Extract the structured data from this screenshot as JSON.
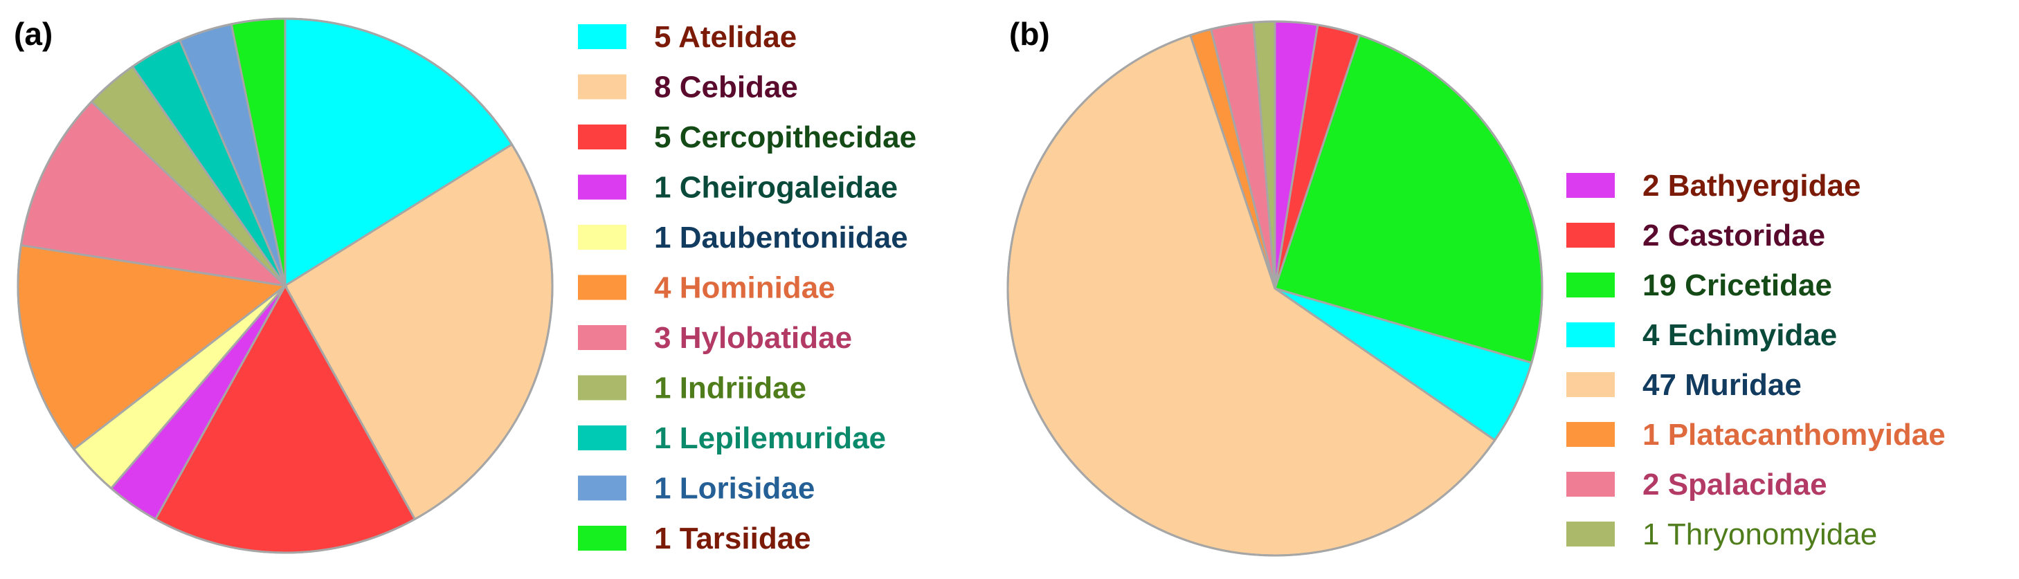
{
  "chart_data": [
    {
      "type": "pie",
      "panel_label": "(a)",
      "title": "",
      "start": "12 o'clock",
      "direction": "clockwise",
      "legend_position": "right",
      "slices": [
        {
          "label": "Atelidae",
          "value": 5,
          "color": "#00ffff",
          "text_color": "#7b1a06"
        },
        {
          "label": "Cebidae",
          "value": 8,
          "color": "#fdd09b",
          "text_color": "#5a0a2c"
        },
        {
          "label": "Cercopithecidae",
          "value": 5,
          "color": "#fd3f3f",
          "text_color": "#144a15"
        },
        {
          "label": "Cheirogaleidae",
          "value": 1,
          "color": "#dc3cf0",
          "text_color": "#0a4a3b"
        },
        {
          "label": "Daubentoniidae",
          "value": 1,
          "color": "#feff99",
          "text_color": "#123b60"
        },
        {
          "label": "Hominidae",
          "value": 4,
          "color": "#fd953c",
          "text_color": "#df6a3e"
        },
        {
          "label": "Hylobatidae",
          "value": 3,
          "color": "#ef7d94",
          "text_color": "#b23a64"
        },
        {
          "label": "Indriidae",
          "value": 1,
          "color": "#aab96a",
          "text_color": "#4f7d1c"
        },
        {
          "label": "Lepilemuridae",
          "value": 1,
          "color": "#00c9b4",
          "text_color": "#0a8a6b"
        },
        {
          "label": "Lorisidae",
          "value": 1,
          "color": "#6e9fd6",
          "text_color": "#245f95"
        },
        {
          "label": "Tarsiidae",
          "value": 1,
          "color": "#16f01e",
          "text_color": "#7b1a06"
        }
      ]
    },
    {
      "type": "pie",
      "panel_label": "(b)",
      "title": "",
      "start": "12 o'clock",
      "direction": "clockwise",
      "legend_position": "right",
      "slices": [
        {
          "label": "Bathyergidae",
          "value": 2,
          "color": "#dc3cf0",
          "text_color": "#7b1a06"
        },
        {
          "label": "Castoridae",
          "value": 2,
          "color": "#fd3f3f",
          "text_color": "#5a0a2c"
        },
        {
          "label": "Cricetidae",
          "value": 19,
          "color": "#16f01e",
          "text_color": "#144a15"
        },
        {
          "label": "Echimyidae",
          "value": 4,
          "color": "#00ffff",
          "text_color": "#0a4a3b"
        },
        {
          "label": "Muridae",
          "value": 47,
          "color": "#fdd09b",
          "text_color": "#123b60"
        },
        {
          "label": "Platacanthomyidae",
          "value": 1,
          "color": "#fd953c",
          "text_color": "#df6a3e"
        },
        {
          "label": "Spalacidae",
          "value": 2,
          "color": "#ef7d94",
          "text_color": "#b23a64"
        },
        {
          "label": "Thryonomyidae",
          "value": 1,
          "color": "#aab96a",
          "text_color": "#4f7d1c",
          "bold": false
        }
      ]
    }
  ]
}
